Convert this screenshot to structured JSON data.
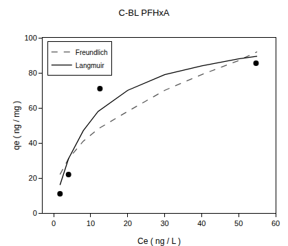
{
  "chart_data": {
    "type": "scatter",
    "title": "C-BL PFHxA",
    "x_label": "Ce ( ng / L )",
    "y_label": "qe ( ng / mg )",
    "xlim": [
      -3,
      60
    ],
    "ylim": [
      0,
      100
    ],
    "xticks": [
      0,
      10,
      20,
      30,
      40,
      50,
      60
    ],
    "yticks": [
      0,
      20,
      40,
      60,
      80,
      100
    ],
    "grid": false,
    "legend": "upper left",
    "series": [
      {
        "type": "scatter",
        "marker": "circle",
        "color": "#000000",
        "x": [
          1.7,
          4,
          12.5,
          54.7
        ],
        "values": [
          11,
          22,
          71,
          85.5
        ]
      },
      {
        "name": "Freundlich",
        "type": "line",
        "line_style": "dashed",
        "color": "#555555",
        "x": [
          1.7,
          4,
          8,
          12,
          20,
          30,
          40,
          50,
          55
        ],
        "values": [
          22,
          31,
          41,
          48,
          58,
          70,
          79,
          87,
          92
        ]
      },
      {
        "name": "Langmuir",
        "type": "line",
        "line_style": "solid",
        "color": "#000000",
        "x": [
          1.7,
          4,
          8,
          12,
          20,
          30,
          40,
          50,
          55
        ],
        "values": [
          16,
          31,
          47,
          58,
          70,
          79,
          84,
          88,
          89.5
        ]
      }
    ]
  }
}
